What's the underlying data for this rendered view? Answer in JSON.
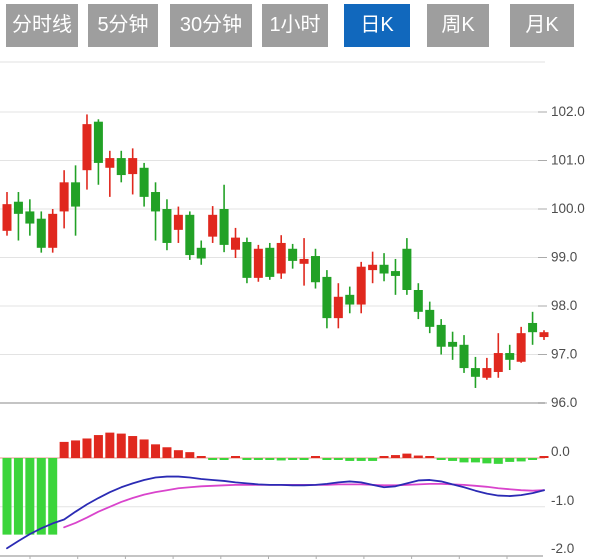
{
  "tabs": [
    {
      "label": "分时线",
      "active": false
    },
    {
      "label": "5分钟",
      "active": false
    },
    {
      "label": "30分钟",
      "active": false
    },
    {
      "label": "1小时",
      "active": false
    },
    {
      "label": "日K",
      "active": true
    },
    {
      "label": "周K",
      "active": false
    },
    {
      "label": "月K",
      "active": false
    }
  ],
  "colors": {
    "candle_up": "#e0281e",
    "candle_down": "#22a126",
    "macd_bar_up": "#e0281e",
    "macd_bar_down": "#3bd53b",
    "dif_line": "#2b2bb4",
    "dea_line": "#d944cc",
    "tab_bg": "#9e9e9e",
    "tab_active_bg": "#1168bd",
    "tab_text": "#ffffff",
    "axis_text": "#4d4d4d",
    "grid": "#e3e3e3",
    "pane_border": "#c4c4c4",
    "macd_zero_line": "#e59489",
    "axis_line": "#aaaaaa"
  },
  "chart_data": {
    "type": "candlestick_with_macd",
    "candle_format": [
      "open",
      "high",
      "low",
      "close"
    ],
    "up_color_meaning": "red = close >= open (Chinese convention)",
    "price_axis": {
      "labels": [
        "102.0",
        "101.0",
        "100.0",
        "99.0",
        "98.0",
        "97.0",
        "96.0"
      ],
      "values": [
        102,
        101,
        100,
        99,
        98,
        97,
        96
      ]
    },
    "macd_axis": {
      "labels": [
        "0.0",
        "-1.0",
        "-2.0"
      ],
      "values": [
        0,
        -1,
        -2
      ]
    },
    "candles": [
      [
        99.55,
        100.35,
        99.45,
        100.1
      ],
      [
        100.15,
        100.35,
        99.35,
        99.9
      ],
      [
        99.95,
        100.2,
        99.45,
        99.7
      ],
      [
        99.8,
        99.95,
        99.1,
        99.2
      ],
      [
        99.2,
        100.0,
        99.1,
        99.9
      ],
      [
        99.95,
        100.8,
        99.6,
        100.55
      ],
      [
        100.55,
        100.9,
        99.45,
        100.05
      ],
      [
        100.8,
        101.95,
        100.4,
        101.75
      ],
      [
        101.8,
        101.85,
        100.5,
        100.95
      ],
      [
        100.85,
        101.2,
        100.25,
        101.05
      ],
      [
        101.05,
        101.2,
        100.55,
        100.7
      ],
      [
        100.72,
        101.25,
        100.3,
        101.05
      ],
      [
        100.85,
        100.95,
        100.05,
        100.25
      ],
      [
        100.35,
        100.55,
        99.35,
        99.95
      ],
      [
        100.0,
        100.2,
        99.15,
        99.3
      ],
      [
        99.57,
        100.05,
        99.3,
        99.88
      ],
      [
        99.88,
        99.95,
        98.95,
        99.05
      ],
      [
        99.2,
        99.35,
        98.85,
        98.98
      ],
      [
        99.43,
        100.06,
        99.3,
        99.88
      ],
      [
        100.0,
        100.5,
        99.11,
        99.26
      ],
      [
        99.16,
        99.61,
        98.99,
        99.41
      ],
      [
        99.32,
        99.41,
        98.47,
        98.58
      ],
      [
        98.58,
        99.26,
        98.5,
        99.18
      ],
      [
        99.2,
        99.3,
        98.54,
        98.6
      ],
      [
        98.67,
        99.46,
        98.56,
        99.3
      ],
      [
        99.18,
        99.28,
        98.77,
        98.93
      ],
      [
        98.87,
        99.4,
        98.42,
        98.97
      ],
      [
        99.03,
        99.18,
        98.36,
        98.49
      ],
      [
        98.6,
        98.74,
        97.54,
        97.75
      ],
      [
        97.75,
        98.47,
        97.54,
        98.19
      ],
      [
        98.23,
        98.4,
        97.85,
        98.03
      ],
      [
        98.03,
        98.91,
        97.85,
        98.81
      ],
      [
        98.74,
        99.12,
        98.47,
        98.85
      ],
      [
        98.85,
        99.09,
        98.51,
        98.67
      ],
      [
        98.72,
        98.97,
        98.23,
        98.62
      ],
      [
        99.18,
        99.4,
        98.23,
        98.33
      ],
      [
        98.33,
        98.47,
        97.73,
        97.88
      ],
      [
        97.92,
        98.09,
        97.44,
        97.57
      ],
      [
        97.61,
        97.73,
        97.0,
        97.16
      ],
      [
        97.26,
        97.47,
        96.89,
        97.16
      ],
      [
        97.2,
        97.4,
        96.62,
        96.72
      ],
      [
        96.72,
        96.95,
        96.31,
        96.54
      ],
      [
        96.52,
        96.93,
        96.48,
        96.72
      ],
      [
        96.64,
        97.44,
        96.52,
        97.03
      ],
      [
        97.03,
        97.2,
        96.68,
        96.89
      ],
      [
        96.85,
        97.57,
        96.83,
        97.44
      ],
      [
        97.65,
        97.88,
        97.2,
        97.46
      ],
      [
        97.36,
        97.5,
        97.3,
        97.46
      ]
    ],
    "macd": {
      "histogram": [
        -1.57,
        -1.57,
        -1.57,
        -1.57,
        -1.57,
        0.33,
        0.36,
        0.4,
        0.47,
        0.52,
        0.5,
        0.45,
        0.38,
        0.28,
        0.22,
        0.16,
        0.12,
        0.04,
        -0.03,
        -0.03,
        0.03,
        -0.01,
        -0.04,
        -0.04,
        -0.05,
        -0.04,
        -0.04,
        0.02,
        -0.01,
        -0.04,
        -0.06,
        -0.06,
        -0.06,
        0.03,
        0.06,
        0.09,
        0.05,
        0.02,
        -0.02,
        -0.06,
        -0.09,
        -0.09,
        -0.11,
        -0.12,
        -0.08,
        -0.07,
        -0.03,
        0.03
      ],
      "dif": [
        -1.85,
        -1.7,
        -1.56,
        -1.44,
        -1.34,
        -1.26,
        -1.1,
        -0.95,
        -0.82,
        -0.7,
        -0.6,
        -0.52,
        -0.45,
        -0.4,
        -0.38,
        -0.38,
        -0.4,
        -0.43,
        -0.45,
        -0.47,
        -0.5,
        -0.52,
        -0.54,
        -0.55,
        -0.55,
        -0.56,
        -0.56,
        -0.55,
        -0.53,
        -0.5,
        -0.48,
        -0.5,
        -0.55,
        -0.6,
        -0.58,
        -0.52,
        -0.46,
        -0.45,
        -0.48,
        -0.54,
        -0.6,
        -0.67,
        -0.73,
        -0.77,
        -0.78,
        -0.76,
        -0.72,
        -0.66
      ],
      "dea": [
        null,
        null,
        null,
        null,
        null,
        -1.42,
        -1.33,
        -1.22,
        -1.1,
        -1.0,
        -0.9,
        -0.82,
        -0.75,
        -0.7,
        -0.66,
        -0.62,
        -0.6,
        -0.58,
        -0.57,
        -0.56,
        -0.55,
        -0.55,
        -0.55,
        -0.55,
        -0.55,
        -0.55,
        -0.55,
        -0.55,
        -0.55,
        -0.54,
        -0.54,
        -0.54,
        -0.55,
        -0.56,
        -0.56,
        -0.55,
        -0.54,
        -0.53,
        -0.53,
        -0.54,
        -0.55,
        -0.57,
        -0.59,
        -0.62,
        -0.64,
        -0.66,
        -0.67,
        -0.66
      ]
    }
  }
}
